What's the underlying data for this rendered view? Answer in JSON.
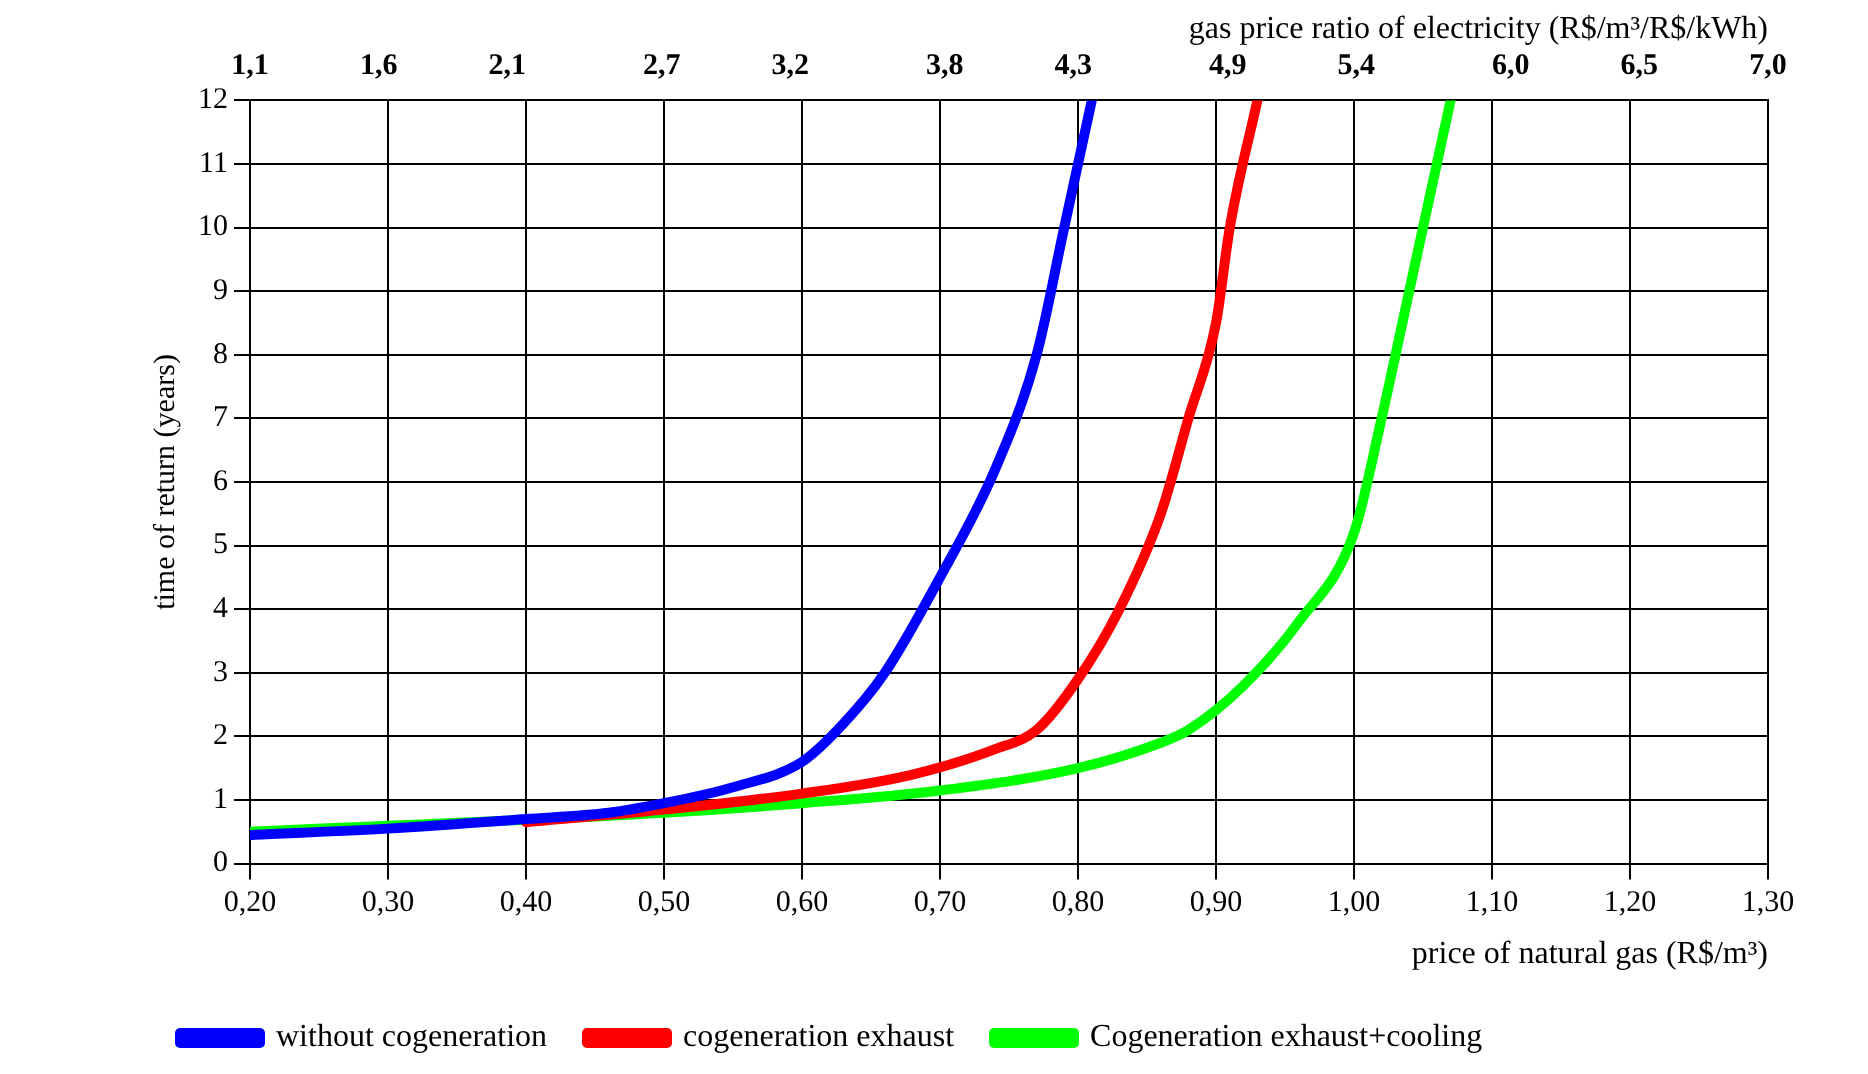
{
  "chart_data": {
    "type": "line",
    "xlabel": "price of natural gas (R$/m³)",
    "ylabel": "time of return (years)",
    "x2label": "gas price ratio of electricity (R$/m³/R$/kWh)",
    "xlim": [
      0.2,
      1.3
    ],
    "xticks": [
      {
        "value": 0.2,
        "label": "0,20"
      },
      {
        "value": 0.3,
        "label": "0,30"
      },
      {
        "value": 0.4,
        "label": "0,40"
      },
      {
        "value": 0.5,
        "label": "0,50"
      },
      {
        "value": 0.6,
        "label": "0,60"
      },
      {
        "value": 0.7,
        "label": "0,70"
      },
      {
        "value": 0.8,
        "label": "0,80"
      },
      {
        "value": 0.9,
        "label": "0,90"
      },
      {
        "value": 1.0,
        "label": "1,00"
      },
      {
        "value": 1.1,
        "label": "1,10"
      },
      {
        "value": 1.2,
        "label": "1,20"
      },
      {
        "value": 1.3,
        "label": "1,30"
      }
    ],
    "x2lim": [
      1.1,
      7.0
    ],
    "x2ticks": [
      {
        "value": 1.1,
        "label": "1,1"
      },
      {
        "value": 1.6,
        "label": "1,6"
      },
      {
        "value": 2.1,
        "label": "2,1"
      },
      {
        "value": 2.7,
        "label": "2,7"
      },
      {
        "value": 3.2,
        "label": "3,2"
      },
      {
        "value": 3.8,
        "label": "3,8"
      },
      {
        "value": 4.3,
        "label": "4,3"
      },
      {
        "value": 4.9,
        "label": "4,9"
      },
      {
        "value": 5.4,
        "label": "5,4"
      },
      {
        "value": 6.0,
        "label": "6,0"
      },
      {
        "value": 6.5,
        "label": "6,5"
      },
      {
        "value": 7.0,
        "label": "7,0"
      }
    ],
    "ylim": [
      0,
      12
    ],
    "yticks": [
      0,
      1,
      2,
      3,
      4,
      5,
      6,
      7,
      8,
      9,
      10,
      11,
      12
    ],
    "grid": true,
    "legend": "bottom",
    "marker": "none",
    "line_style": "solid",
    "series": [
      {
        "name": "without cogeneration",
        "color": "#0000ff",
        "x": [
          0.2,
          0.3,
          0.4,
          0.46,
          0.5,
          0.55,
          0.6,
          0.63,
          0.66,
          0.7,
          0.74,
          0.77,
          0.79,
          0.81
        ],
        "values": [
          0.45,
          0.55,
          0.7,
          0.8,
          0.95,
          1.2,
          1.6,
          2.2,
          3.0,
          4.5,
          6.2,
          8.0,
          10,
          12
        ]
      },
      {
        "name": "cogeneration exhaust",
        "color": "#ff0000",
        "x": [
          0.4,
          0.5,
          0.6,
          0.68,
          0.74,
          0.77,
          0.8,
          0.83,
          0.86,
          0.88,
          0.9,
          0.91,
          0.93
        ],
        "values": [
          0.65,
          0.85,
          1.1,
          1.4,
          1.8,
          2.1,
          2.9,
          4.0,
          5.5,
          7.0,
          8.5,
          10,
          12
        ]
      },
      {
        "name": "Cogeneration exhaust+cooling",
        "color": "#00ff00",
        "x": [
          0.2,
          0.5,
          0.6,
          0.7,
          0.8,
          0.86,
          0.88,
          0.92,
          0.96,
          1.0,
          1.02,
          1.04,
          1.06,
          1.07
        ],
        "values": [
          0.5,
          0.8,
          0.95,
          1.15,
          1.5,
          1.9,
          2.1,
          2.8,
          3.8,
          5.2,
          7.0,
          9.0,
          11,
          12
        ]
      }
    ]
  }
}
